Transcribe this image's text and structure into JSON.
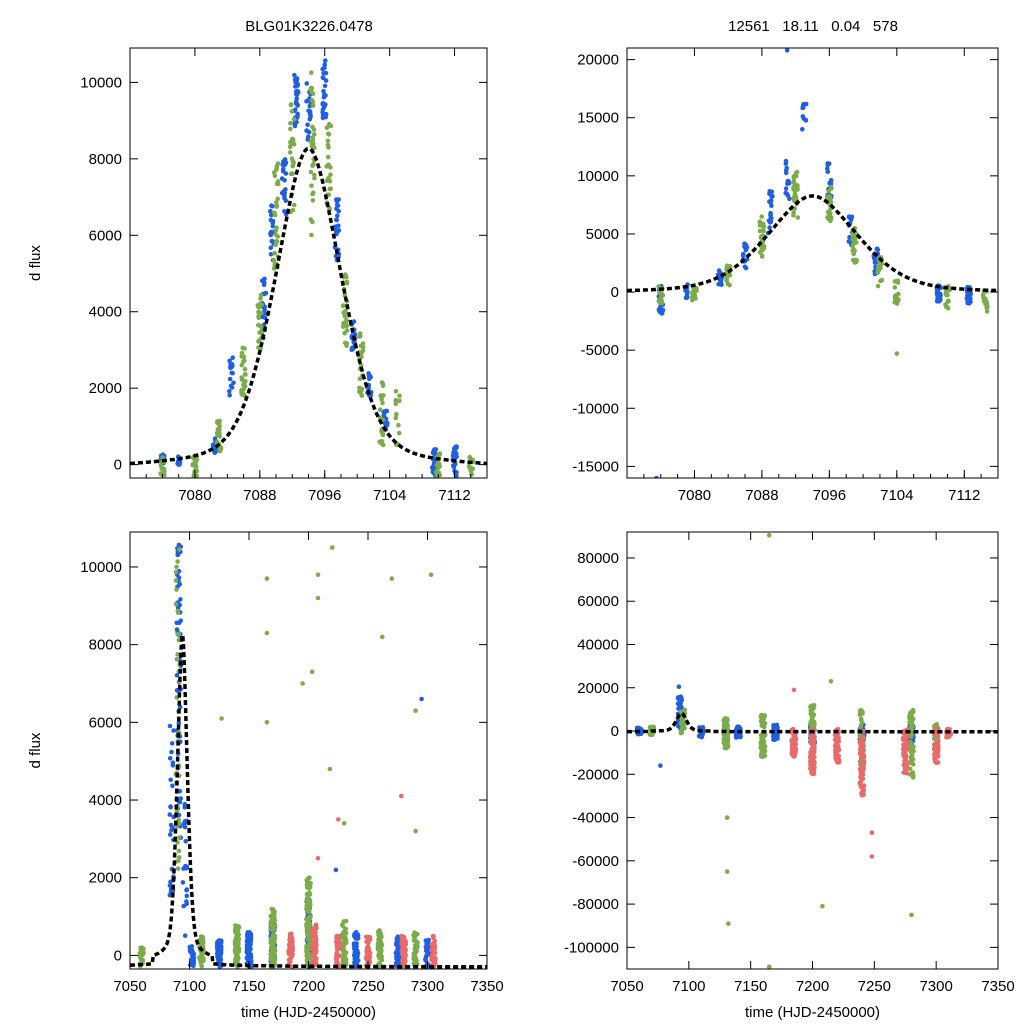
{
  "figure": {
    "title_left": "BLG01K3226.0478",
    "title_right": "12561   18.11   0.04   578"
  },
  "colors": {
    "blue": "#1f5fe0",
    "green": "#7cab4a",
    "red": "#e86a6a",
    "fit": "#000000"
  },
  "chart_data": [
    {
      "panel": "top-left",
      "type": "scatter",
      "xlabel": "",
      "ylabel": "d flux",
      "xlim": [
        7072,
        7116
      ],
      "ylim": [
        -350,
        10900
      ],
      "xticks": [
        7080,
        7088,
        7096,
        7104,
        7112
      ],
      "yticks": [
        0,
        2000,
        4000,
        6000,
        8000,
        10000
      ],
      "fit_curve": {
        "model": "peak",
        "t0": 7094,
        "peak": 8270,
        "baseline": -300,
        "width": 4.2
      },
      "series": [
        {
          "name": "blue",
          "color_key": "blue",
          "clusters": [
            [
              7076,
              20,
              0,
              260
            ],
            [
              7078,
              12,
              0,
              220
            ],
            [
              7082.5,
              12,
              200,
              700
            ],
            [
              7084.5,
              16,
              1500,
              2800
            ],
            [
              7088.5,
              22,
              3300,
              5000
            ],
            [
              7089.5,
              18,
              5300,
              6800
            ],
            [
              7091,
              22,
              6500,
              8000
            ],
            [
              7092.5,
              30,
              8800,
              10200
            ],
            [
              7094,
              20,
              8500,
              10000
            ],
            [
              7096,
              26,
              9000,
              10600
            ],
            [
              7097.5,
              24,
              5300,
              7000
            ],
            [
              7099.5,
              18,
              3000,
              3800
            ],
            [
              7101.5,
              16,
              1800,
              2400
            ],
            [
              7103.5,
              14,
              900,
              1500
            ],
            [
              7109.5,
              26,
              -300,
              400
            ],
            [
              7112,
              24,
              -300,
              500
            ]
          ]
        },
        {
          "name": "green",
          "color_key": "green",
          "clusters": [
            [
              7076,
              18,
              -300,
              200
            ],
            [
              7080,
              20,
              -300,
              300
            ],
            [
              7083,
              24,
              300,
              1200
            ],
            [
              7086,
              26,
              1800,
              3200
            ],
            [
              7088,
              26,
              3000,
              4500
            ],
            [
              7090,
              30,
              5000,
              8000
            ],
            [
              7092,
              26,
              6500,
              9500
            ],
            [
              7094.5,
              32,
              6000,
              10500
            ],
            [
              7096.5,
              24,
              6500,
              9000
            ],
            [
              7098.5,
              26,
              3000,
              5200
            ],
            [
              7100.5,
              24,
              1800,
              3500
            ],
            [
              7103,
              22,
              500,
              2200
            ],
            [
              7105,
              14,
              500,
              2000
            ],
            [
              7110,
              18,
              -300,
              300
            ],
            [
              7114,
              14,
              -300,
              200
            ]
          ]
        }
      ]
    },
    {
      "panel": "top-right",
      "type": "scatter",
      "xlabel": "",
      "ylabel": "",
      "xlim": [
        7072,
        7116
      ],
      "ylim": [
        -16000,
        21000
      ],
      "xticks": [
        7080,
        7088,
        7096,
        7104,
        7112
      ],
      "yticks": [
        -15000,
        -10000,
        -5000,
        0,
        5000,
        10000,
        15000,
        20000
      ],
      "fit_curve": {
        "model": "peak",
        "t0": 7094,
        "peak": 8270,
        "baseline": -300,
        "width": 5.5
      },
      "series": [
        {
          "name": "blue",
          "color_key": "blue",
          "clusters": [
            [
              7076,
              20,
              -2000,
              600
            ],
            [
              7079,
              10,
              -500,
              800
            ],
            [
              7083,
              12,
              300,
              2000
            ],
            [
              7086,
              16,
              2000,
              4500
            ],
            [
              7089,
              20,
              5000,
              9000
            ],
            [
              7091,
              16,
              8000,
              12000
            ],
            [
              7093,
              10,
              14000,
              16500
            ],
            [
              7096,
              18,
              8000,
              11500
            ],
            [
              7098.5,
              14,
              4000,
              6500
            ],
            [
              7101.5,
              16,
              1500,
              3800
            ],
            [
              7109,
              26,
              -800,
              600
            ],
            [
              7112.5,
              24,
              -1000,
              500
            ]
          ]
        },
        {
          "name": "green",
          "color_key": "green",
          "clusters": [
            [
              7076,
              20,
              -1000,
              500
            ],
            [
              7080,
              22,
              -800,
              400
            ],
            [
              7084,
              24,
              500,
              2500
            ],
            [
              7088,
              26,
              3000,
              6500
            ],
            [
              7092,
              30,
              6000,
              10500
            ],
            [
              7096,
              28,
              6000,
              9500
            ],
            [
              7099,
              26,
              2500,
              5500
            ],
            [
              7102,
              24,
              500,
              3000
            ],
            [
              7104,
              16,
              -1000,
              1000
            ],
            [
              7110,
              18,
              -1500,
              500
            ],
            [
              7114.5,
              14,
              -2000,
              200
            ]
          ]
        }
      ],
      "extra_points": [
        {
          "x": 7091,
          "y": 20800,
          "color_key": "blue"
        },
        {
          "x": 7075.5,
          "y": -16000,
          "color_key": "blue"
        },
        {
          "x": 7104,
          "y": -5300,
          "color_key": "green"
        }
      ]
    },
    {
      "panel": "bottom-left",
      "type": "scatter",
      "xlabel": "time (HJD-2450000)",
      "ylabel": "d flux",
      "xlim": [
        7050,
        7350
      ],
      "ylim": [
        -350,
        10900
      ],
      "xticks": [
        7050,
        7100,
        7150,
        7200,
        7250,
        7300,
        7350
      ],
      "yticks": [
        0,
        2000,
        4000,
        6000,
        8000,
        10000
      ],
      "fit_curve": {
        "model": "peak",
        "t0": 7094,
        "peak": 8270,
        "baseline": -300,
        "width": 4.2
      },
      "series": [
        {
          "name": "blue",
          "color_key": "blue",
          "clusters": [
            [
              7085,
              30,
              1500,
              6000
            ],
            [
              7091,
              60,
              3000,
              10600
            ],
            [
              7096,
              20,
              500,
              4000
            ],
            [
              7102,
              30,
              -300,
              300
            ],
            [
              7125,
              80,
              -300,
              400
            ],
            [
              7150,
              120,
              -300,
              600
            ],
            [
              7170,
              100,
              -300,
              900
            ],
            [
              7200,
              60,
              -300,
              1500
            ],
            [
              7240,
              50,
              -300,
              600
            ],
            [
              7275,
              40,
              -300,
              500
            ],
            [
              7300,
              30,
              -300,
              400
            ]
          ]
        },
        {
          "name": "green",
          "color_key": "green",
          "clusters": [
            [
              7060,
              20,
              -300,
              200
            ],
            [
              7090,
              40,
              2000,
              10500
            ],
            [
              7110,
              40,
              -300,
              500
            ],
            [
              7140,
              80,
              -300,
              800
            ],
            [
              7170,
              90,
              -300,
              1200
            ],
            [
              7200,
              90,
              -300,
              2000
            ],
            [
              7230,
              60,
              -300,
              900
            ],
            [
              7260,
              50,
              -300,
              700
            ],
            [
              7290,
              40,
              -300,
              600
            ]
          ]
        },
        {
          "name": "red",
          "color_key": "red",
          "clusters": [
            [
              7185,
              40,
              -300,
              600
            ],
            [
              7205,
              60,
              -300,
              800
            ],
            [
              7225,
              40,
              -300,
              500
            ],
            [
              7250,
              40,
              -300,
              500
            ],
            [
              7280,
              50,
              -300,
              500
            ],
            [
              7305,
              40,
              -300,
              500
            ]
          ]
        }
      ],
      "extra_points": [
        {
          "x": 7165,
          "y": 9700,
          "color_key": "green"
        },
        {
          "x": 7220,
          "y": 10500,
          "color_key": "green"
        },
        {
          "x": 7270,
          "y": 9700,
          "color_key": "green"
        },
        {
          "x": 7303,
          "y": 9800,
          "color_key": "green"
        },
        {
          "x": 7208,
          "y": 9800,
          "color_key": "green"
        },
        {
          "x": 7208,
          "y": 9200,
          "color_key": "green"
        },
        {
          "x": 7165,
          "y": 8300,
          "color_key": "green"
        },
        {
          "x": 7262,
          "y": 8200,
          "color_key": "green"
        },
        {
          "x": 7203,
          "y": 7300,
          "color_key": "green"
        },
        {
          "x": 7195,
          "y": 7000,
          "color_key": "green"
        },
        {
          "x": 7295,
          "y": 6600,
          "color_key": "blue"
        },
        {
          "x": 7290,
          "y": 6300,
          "color_key": "green"
        },
        {
          "x": 7127,
          "y": 6100,
          "color_key": "green"
        },
        {
          "x": 7165,
          "y": 6000,
          "color_key": "green"
        },
        {
          "x": 7218,
          "y": 4800,
          "color_key": "green"
        },
        {
          "x": 7278,
          "y": 4100,
          "color_key": "red"
        },
        {
          "x": 7225,
          "y": 3500,
          "color_key": "red"
        },
        {
          "x": 7230,
          "y": 3400,
          "color_key": "green"
        },
        {
          "x": 7290,
          "y": 3200,
          "color_key": "green"
        },
        {
          "x": 7208,
          "y": 2500,
          "color_key": "red"
        },
        {
          "x": 7223,
          "y": 2200,
          "color_key": "blue"
        }
      ]
    },
    {
      "panel": "bottom-right",
      "type": "scatter",
      "xlabel": "time (HJD-2450000)",
      "ylabel": "",
      "xlim": [
        7050,
        7350
      ],
      "ylim": [
        -110000,
        92000
      ],
      "xticks": [
        7050,
        7100,
        7150,
        7200,
        7250,
        7300,
        7350
      ],
      "yticks": [
        -100000,
        -80000,
        -60000,
        -40000,
        -20000,
        0,
        20000,
        40000,
        60000,
        80000
      ],
      "fit_curve": {
        "model": "peak",
        "t0": 7094,
        "peak": 8270,
        "baseline": -300,
        "width": 4.2
      },
      "series": [
        {
          "name": "blue",
          "color_key": "blue",
          "clusters": [
            [
              7060,
              40,
              -1500,
              1500
            ],
            [
              7093,
              40,
              0,
              16000
            ],
            [
              7110,
              40,
              -3000,
              2000
            ],
            [
              7140,
              60,
              -3000,
              2000
            ],
            [
              7170,
              50,
              -4000,
              3000
            ],
            [
              7200,
              40,
              -6000,
              3000
            ],
            [
              7240,
              40,
              -6000,
              3000
            ],
            [
              7280,
              40,
              -8000,
              3000
            ]
          ]
        },
        {
          "name": "green",
          "color_key": "green",
          "clusters": [
            [
              7070,
              30,
              -2000,
              2000
            ],
            [
              7095,
              30,
              -1000,
              10000
            ],
            [
              7130,
              60,
              -8000,
              6000
            ],
            [
              7160,
              60,
              -12000,
              8000
            ],
            [
              7200,
              60,
              -15000,
              12000
            ],
            [
              7240,
              50,
              -18000,
              10000
            ],
            [
              7280,
              50,
              -22000,
              10000
            ],
            [
              7300,
              30,
              -10000,
              5000
            ]
          ]
        },
        {
          "name": "red",
          "color_key": "red",
          "clusters": [
            [
              7185,
              60,
              -12000,
              1000
            ],
            [
              7200,
              60,
              -20000,
              1000
            ],
            [
              7220,
              60,
              -15000,
              1000
            ],
            [
              7240,
              60,
              -30000,
              1000
            ],
            [
              7275,
              50,
              -20000,
              1000
            ],
            [
              7300,
              40,
              -15000,
              1000
            ],
            [
              7310,
              30,
              -3000,
              1000
            ]
          ]
        }
      ],
      "extra_points": [
        {
          "x": 7165,
          "y": 90500,
          "color_key": "green"
        },
        {
          "x": 7165,
          "y": -109000,
          "color_key": "green"
        },
        {
          "x": 7132,
          "y": -89000,
          "color_key": "green"
        },
        {
          "x": 7131,
          "y": -65000,
          "color_key": "green"
        },
        {
          "x": 7131,
          "y": -40000,
          "color_key": "green"
        },
        {
          "x": 7208,
          "y": -81000,
          "color_key": "green"
        },
        {
          "x": 7280,
          "y": -85000,
          "color_key": "green"
        },
        {
          "x": 7248,
          "y": -58000,
          "color_key": "red"
        },
        {
          "x": 7248,
          "y": -47000,
          "color_key": "red"
        },
        {
          "x": 7077,
          "y": -16000,
          "color_key": "blue"
        },
        {
          "x": 7215,
          "y": 23000,
          "color_key": "green"
        },
        {
          "x": 7185,
          "y": 19000,
          "color_key": "red"
        },
        {
          "x": 7092,
          "y": 20500,
          "color_key": "blue"
        }
      ]
    }
  ]
}
